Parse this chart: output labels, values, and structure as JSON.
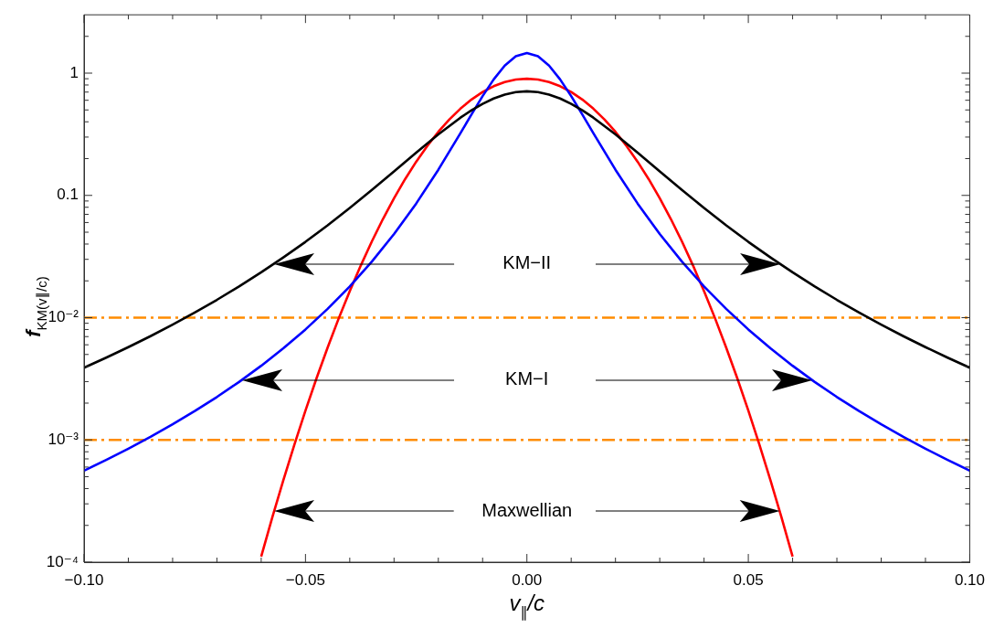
{
  "chart_data": {
    "type": "line",
    "xlabel": "v$_{∥}$/c",
    "ylabel": "f$_{KM(v∥/c)}$",
    "log": "y",
    "grid": false,
    "legend": false,
    "xlim": [
      -0.1,
      0.1
    ],
    "xticks": [
      {
        "value": -0.1,
        "label": "−0.10"
      },
      {
        "value": -0.09,
        "label": null
      },
      {
        "value": -0.08,
        "label": null
      },
      {
        "value": -0.07,
        "label": null
      },
      {
        "value": -0.06,
        "label": null
      },
      {
        "value": -0.05,
        "label": "−0.05"
      },
      {
        "value": -0.04,
        "label": null
      },
      {
        "value": -0.03,
        "label": null
      },
      {
        "value": -0.02,
        "label": null
      },
      {
        "value": -0.01,
        "label": null
      },
      {
        "value": 0,
        "label": "0.00"
      },
      {
        "value": 0.01,
        "label": null
      },
      {
        "value": 0.02,
        "label": null
      },
      {
        "value": 0.03,
        "label": null
      },
      {
        "value": 0.04,
        "label": null
      },
      0.05,
      {
        "value": 0.06,
        "label": null
      },
      {
        "value": 0.07,
        "label": null
      },
      {
        "value": 0.08,
        "label": null
      },
      {
        "value": 0.09,
        "label": null
      },
      {
        "value": 0.1,
        "label": "0.10"
      }
    ],
    "ylim": [
      0.0001,
      3
    ],
    "yticks": [
      {
        "value": 0.0001,
        "label": "10⁻⁴"
      },
      {
        "value": 0.0002,
        "label": null
      },
      {
        "value": 0.0003,
        "label": null
      },
      {
        "value": 0.0004,
        "label": null
      },
      {
        "value": 0.0005,
        "label": null
      },
      {
        "value": 0.0006,
        "label": null
      },
      {
        "value": 0.0007,
        "label": null
      },
      {
        "value": 0.0008,
        "label": null
      },
      {
        "value": 0.0009,
        "label": null
      },
      {
        "value": 0.001,
        "label": "10⁻³"
      },
      {
        "value": 0.002,
        "label": null
      },
      {
        "value": 0.003,
        "label": null
      },
      {
        "value": 0.004,
        "label": null
      },
      {
        "value": 0.005,
        "label": null
      },
      {
        "value": 0.006,
        "label": null
      },
      {
        "value": 0.007,
        "label": null
      },
      {
        "value": 0.008,
        "label": null
      },
      {
        "value": 0.009,
        "label": null
      },
      {
        "value": 0.01,
        "label": "10⁻²"
      },
      {
        "value": 0.02,
        "label": null
      },
      {
        "value": 0.03,
        "label": null
      },
      {
        "value": 0.04,
        "label": null
      },
      {
        "value": 0.05,
        "label": null
      },
      {
        "value": 0.06,
        "label": null
      },
      {
        "value": 0.07,
        "label": null
      },
      {
        "value": 0.08,
        "label": null
      },
      {
        "value": 0.09,
        "label": null
      },
      0.1,
      {
        "value": 0.2,
        "label": null
      },
      {
        "value": 0.3,
        "label": null
      },
      {
        "value": 0.4,
        "label": null
      },
      {
        "value": 0.5,
        "label": null
      },
      {
        "value": 0.6,
        "label": null
      },
      {
        "value": 0.7,
        "label": null
      },
      {
        "value": 0.8,
        "label": null
      },
      {
        "value": 0.9,
        "label": null
      },
      1,
      {
        "value": 2,
        "label": null
      }
    ],
    "series": [
      {
        "color": "#000000",
        "x": [
          -0.1,
          -0.095,
          -0.09,
          -0.085,
          -0.08,
          -0.075,
          -0.07,
          -0.065,
          -0.06,
          -0.055,
          -0.05,
          -0.045,
          -0.04,
          -0.035,
          -0.03,
          -0.025,
          -0.02,
          -0.015,
          -0.0125,
          -0.01,
          -0.0075,
          -0.005,
          -0.0025,
          0,
          0.0025,
          0.005,
          0.0075,
          0.01,
          0.0125,
          0.015,
          0.02,
          0.025,
          0.03,
          0.035,
          0.04,
          0.045,
          0.05,
          0.055,
          0.06,
          0.065,
          0.07,
          0.075,
          0.08,
          0.085,
          0.09,
          0.095,
          0.1
        ],
        "values": [
          0.0039,
          0.00471,
          0.00574,
          0.00706,
          0.00877,
          0.01101,
          0.01399,
          0.018,
          0.0235,
          0.0311,
          0.0417,
          0.0569,
          0.0789,
          0.1108,
          0.1572,
          0.2238,
          0.3156,
          0.4325,
          0.497,
          0.561,
          0.62,
          0.668,
          0.699,
          0.71,
          0.699,
          0.668,
          0.62,
          0.561,
          0.497,
          0.4325,
          0.3156,
          0.2238,
          0.1572,
          0.1108,
          0.0789,
          0.0569,
          0.0417,
          0.0311,
          0.0235,
          0.018,
          0.01399,
          0.01101,
          0.00877,
          0.00706,
          0.00574,
          0.00471,
          0.0039
        ]
      },
      {
        "color": "#0000ff",
        "x": [
          -0.1,
          -0.095,
          -0.09,
          -0.085,
          -0.08,
          -0.075,
          -0.07,
          -0.065,
          -0.06,
          -0.055,
          -0.05,
          -0.045,
          -0.04,
          -0.035,
          -0.03,
          -0.025,
          -0.02,
          -0.015,
          -0.0125,
          -0.01,
          -0.0075,
          -0.005,
          -0.0025,
          0,
          0.0025,
          0.005,
          0.0075,
          0.01,
          0.0125,
          0.015,
          0.02,
          0.025,
          0.03,
          0.035,
          0.04,
          0.045,
          0.05,
          0.055,
          0.06,
          0.065,
          0.07,
          0.075,
          0.08,
          0.085,
          0.09,
          0.095,
          0.1
        ],
        "values": [
          0.000561,
          0.000686,
          0.000848,
          0.001059,
          0.001341,
          0.001721,
          0.002245,
          0.00298,
          0.00404,
          0.00561,
          0.00801,
          0.0118,
          0.01802,
          0.02876,
          0.0483,
          0.0858,
          0.1622,
          0.3233,
          0.46,
          0.649,
          0.889,
          1.154,
          1.373,
          1.46,
          1.373,
          1.154,
          0.889,
          0.649,
          0.46,
          0.3233,
          0.1622,
          0.0858,
          0.0483,
          0.02876,
          0.01802,
          0.0118,
          0.00801,
          0.00561,
          0.00404,
          0.00298,
          0.002245,
          0.001721,
          0.001341,
          0.001059,
          0.000848,
          0.000686,
          0.000561
        ]
      },
      {
        "color": "#ff0000",
        "x": [
          -0.06,
          -0.0575,
          -0.055,
          -0.0525,
          -0.05,
          -0.0475,
          -0.045,
          -0.0425,
          -0.04,
          -0.0375,
          -0.035,
          -0.0325,
          -0.03,
          -0.0275,
          -0.025,
          -0.0225,
          -0.02,
          -0.0175,
          -0.015,
          -0.0125,
          -0.01,
          -0.0075,
          -0.005,
          -0.0025,
          0,
          0.0025,
          0.005,
          0.0075,
          0.01,
          0.0125,
          0.015,
          0.0175,
          0.02,
          0.0225,
          0.025,
          0.0275,
          0.03,
          0.0325,
          0.035,
          0.0375,
          0.04,
          0.0425,
          0.045,
          0.0475,
          0.05,
          0.0525,
          0.055,
          0.0575,
          0.06
        ],
        "values": [
          0.000111,
          0.000232,
          0.000468,
          0.000915,
          0.001737,
          0.003196,
          0.005697,
          0.00985,
          0.01648,
          0.02676,
          0.04209,
          0.06418,
          0.0949,
          0.1359,
          0.1886,
          0.2539,
          0.3311,
          0.4186,
          0.5128,
          0.609,
          0.7009,
          0.7819,
          0.8455,
          0.886,
          0.9,
          0.886,
          0.8455,
          0.7819,
          0.7009,
          0.609,
          0.5128,
          0.4186,
          0.3311,
          0.2539,
          0.1886,
          0.1359,
          0.0949,
          0.06418,
          0.04209,
          0.02676,
          0.01648,
          0.00985,
          0.005697,
          0.003196,
          0.001737,
          0.000915,
          0.000468,
          0.000232,
          0.000111
        ]
      }
    ],
    "ref_lines": [
      {
        "axis": "y",
        "value": 0.01,
        "color": "#ff8c00",
        "line_style": "dashed"
      },
      {
        "axis": "y",
        "value": 0.001,
        "color": "#ff8c00",
        "line_style": "dashed"
      }
    ],
    "annotations": [
      "KM−II",
      "KM−I",
      "Maxwellian"
    ]
  }
}
